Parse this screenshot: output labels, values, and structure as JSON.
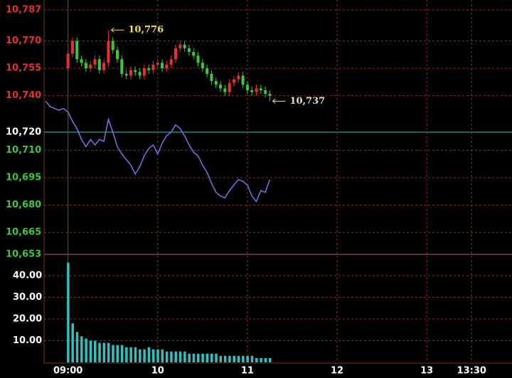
{
  "chart_data": [
    {
      "type": "candlestick",
      "x": [
        540,
        543,
        546,
        549,
        552,
        555,
        558,
        561,
        564,
        567,
        570,
        573,
        576,
        579,
        582,
        585,
        588,
        591,
        594,
        597,
        600,
        603,
        606,
        609,
        612,
        615,
        618,
        621,
        624,
        627,
        630,
        633,
        636,
        639,
        642,
        645,
        648,
        651,
        654,
        657,
        660,
        663,
        666,
        669,
        672,
        675
      ],
      "open": [
        10755,
        10763,
        10770,
        10760,
        10758,
        10755,
        10757,
        10760,
        10754,
        10758,
        10770,
        10765,
        10760,
        10752,
        10751,
        10754,
        10753,
        10751,
        10755,
        10754,
        10757,
        10758,
        10755,
        10757,
        10760,
        10766,
        10768,
        10766,
        10764,
        10762,
        10758,
        10755,
        10752,
        10748,
        10746,
        10744,
        10742,
        10747,
        10749,
        10751,
        10746,
        10743,
        10742,
        10744,
        10743,
        10741
      ],
      "high": [
        10765,
        10772,
        10772,
        10762,
        10760,
        10759,
        10762,
        10762,
        10760,
        10776,
        10772,
        10767,
        10762,
        10754,
        10756,
        10756,
        10755,
        10757,
        10757,
        10759,
        10760,
        10760,
        10759,
        10762,
        10768,
        10770,
        10770,
        10768,
        10766,
        10764,
        10760,
        10757,
        10754,
        10750,
        10748,
        10746,
        10749,
        10751,
        10753,
        10753,
        10748,
        10745,
        10746,
        10746,
        10745,
        10743
      ],
      "low": [
        10753,
        10761,
        10758,
        10756,
        10753,
        10753,
        10755,
        10752,
        10752,
        10756,
        10763,
        10758,
        10750,
        10749,
        10749,
        10751,
        10749,
        10749,
        10752,
        10752,
        10755,
        10753,
        10753,
        10755,
        10758,
        10764,
        10764,
        10762,
        10760,
        10756,
        10753,
        10750,
        10746,
        10744,
        10742,
        10740,
        10740,
        10745,
        10747,
        10744,
        10741,
        10740,
        10740,
        10741,
        10739,
        10737
      ],
      "close": [
        10763,
        10770,
        10760,
        10758,
        10755,
        10757,
        10760,
        10754,
        10758,
        10770,
        10765,
        10760,
        10752,
        10751,
        10754,
        10753,
        10751,
        10755,
        10754,
        10757,
        10758,
        10755,
        10757,
        10760,
        10766,
        10768,
        10766,
        10764,
        10762,
        10758,
        10755,
        10752,
        10748,
        10746,
        10744,
        10742,
        10747,
        10749,
        10751,
        10746,
        10743,
        10742,
        10744,
        10743,
        10741,
        10740
      ],
      "up_color": "#e83030",
      "down_color": "#3cc83c",
      "line": {
        "x": [
          525,
          528,
          531,
          534,
          537,
          540,
          543,
          546,
          549,
          552,
          555,
          558,
          561,
          564,
          567,
          570,
          573,
          576,
          579,
          582,
          585,
          588,
          591,
          594,
          597,
          600,
          603,
          606,
          609,
          612,
          615,
          618,
          621,
          624,
          627,
          630,
          633,
          636,
          639,
          642,
          645,
          648,
          651,
          654,
          657,
          660,
          663,
          666,
          669,
          672,
          675
        ],
        "values": [
          10737,
          10734,
          10733,
          10732,
          10733,
          10731,
          10726,
          10722,
          10716,
          10712,
          10716,
          10713,
          10716,
          10715,
          10727,
          10720,
          10712,
          10708,
          10705,
          10702,
          10697,
          10701,
          10707,
          10711,
          10713,
          10708,
          10714,
          10718,
          10720,
          10724,
          10722,
          10718,
          10713,
          10709,
          10707,
          10702,
          10698,
          10692,
          10687,
          10685,
          10684,
          10688,
          10691,
          10694,
          10693,
          10691,
          10685,
          10682,
          10688,
          10687,
          10694
        ],
        "color": "#7474e8"
      },
      "xlim": [
        524,
        837
      ],
      "ylim": [
        10653,
        10787
      ],
      "yticks": [
        {
          "value": 10787,
          "label": "10,787"
        },
        {
          "value": 10770,
          "label": "10,770"
        },
        {
          "value": 10755,
          "label": "10,755"
        },
        {
          "value": 10740,
          "label": "10,740"
        },
        {
          "value": 10720,
          "label": "10,720"
        },
        {
          "value": 10710,
          "label": "10,710"
        },
        {
          "value": 10695,
          "label": "10,695"
        },
        {
          "value": 10680,
          "label": "10,680"
        },
        {
          "value": 10665,
          "label": "10,665"
        },
        {
          "value": 10653,
          "label": "10,653"
        }
      ],
      "reference": 10720,
      "reference_color": "#30c8c8",
      "label_colors": {
        "above": "#e83030",
        "at": "#ffffff",
        "below": "#3cc83c"
      },
      "grid": true,
      "annotations": [
        {
          "x": 567,
          "value": 10776,
          "label": "10,776",
          "color": "#f0e040"
        },
        {
          "x": 675,
          "value": 10737,
          "label": "10,737",
          "color": "#e8dcc0"
        }
      ]
    },
    {
      "type": "bar",
      "x": [
        540,
        543,
        546,
        549,
        552,
        555,
        558,
        561,
        564,
        567,
        570,
        573,
        576,
        579,
        582,
        585,
        588,
        591,
        594,
        597,
        600,
        603,
        606,
        609,
        612,
        615,
        618,
        621,
        624,
        627,
        630,
        633,
        636,
        639,
        642,
        645,
        648,
        651,
        654,
        657,
        660,
        663,
        666,
        669,
        672,
        675
      ],
      "values": [
        46,
        18,
        14,
        12,
        11,
        10,
        10,
        9,
        9,
        9,
        8,
        8,
        8,
        7,
        7,
        7,
        6,
        6,
        7,
        6,
        6,
        6,
        5,
        5,
        5,
        5,
        5,
        4,
        4,
        4,
        4,
        4,
        4,
        4,
        3,
        3,
        3,
        3,
        3,
        3,
        3,
        3,
        2,
        2,
        2,
        2
      ],
      "color": "#30c0c0",
      "xlim": [
        524,
        837
      ],
      "ylim": [
        0,
        50
      ],
      "yticks": [
        {
          "value": 10,
          "label": "10.00"
        },
        {
          "value": 20,
          "label": "20.00"
        },
        {
          "value": 30,
          "label": "30.00"
        },
        {
          "value": 40,
          "label": "40.00"
        }
      ],
      "xticks": [
        {
          "value": 540,
          "label": "09:00"
        },
        {
          "value": 600,
          "label": "10"
        },
        {
          "value": 660,
          "label": "11"
        },
        {
          "value": 720,
          "label": "12"
        },
        {
          "value": 780,
          "label": "13"
        },
        {
          "value": 810,
          "label": "13:30"
        }
      ],
      "grid": true
    }
  ]
}
